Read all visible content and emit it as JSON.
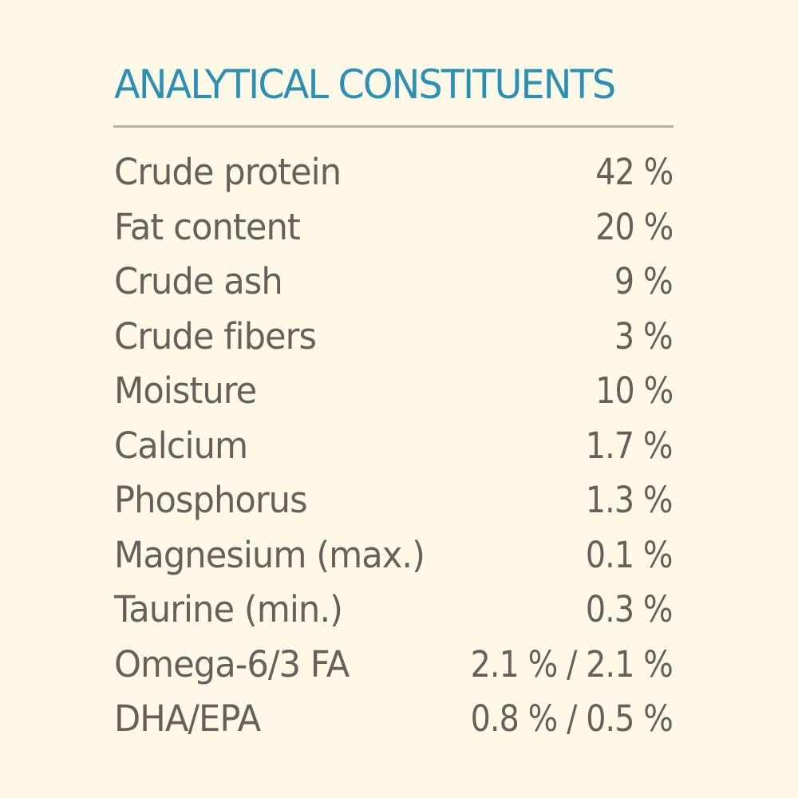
{
  "title": "ANALYTICAL CONSTITUENTS",
  "rows": [
    {
      "label": "Crude protein",
      "value": "42 %"
    },
    {
      "label": "Fat content",
      "value": "20 %"
    },
    {
      "label": "Crude ash",
      "value": "9 %"
    },
    {
      "label": "Crude fibers",
      "value": "3 %"
    },
    {
      "label": "Moisture",
      "value": "10 %"
    },
    {
      "label": "Calcium",
      "value": "1.7 %"
    },
    {
      "label": "Phosphorus",
      "value": "1.3 %"
    },
    {
      "label": "Magnesium (max.)",
      "value": "0.1 %"
    },
    {
      "label": "Taurine (min.)",
      "value": "0.3 %"
    },
    {
      "label": "Omega-6/3 FA",
      "value": "2.1 % / 2.1 %"
    },
    {
      "label": "DHA/EPA",
      "value": "0.8 % / 0.5 %"
    }
  ],
  "colors": {
    "background": "#fdf9e6",
    "title": "#2c8fb4",
    "text": "#67605a",
    "rule": "#b7b1a5"
  }
}
